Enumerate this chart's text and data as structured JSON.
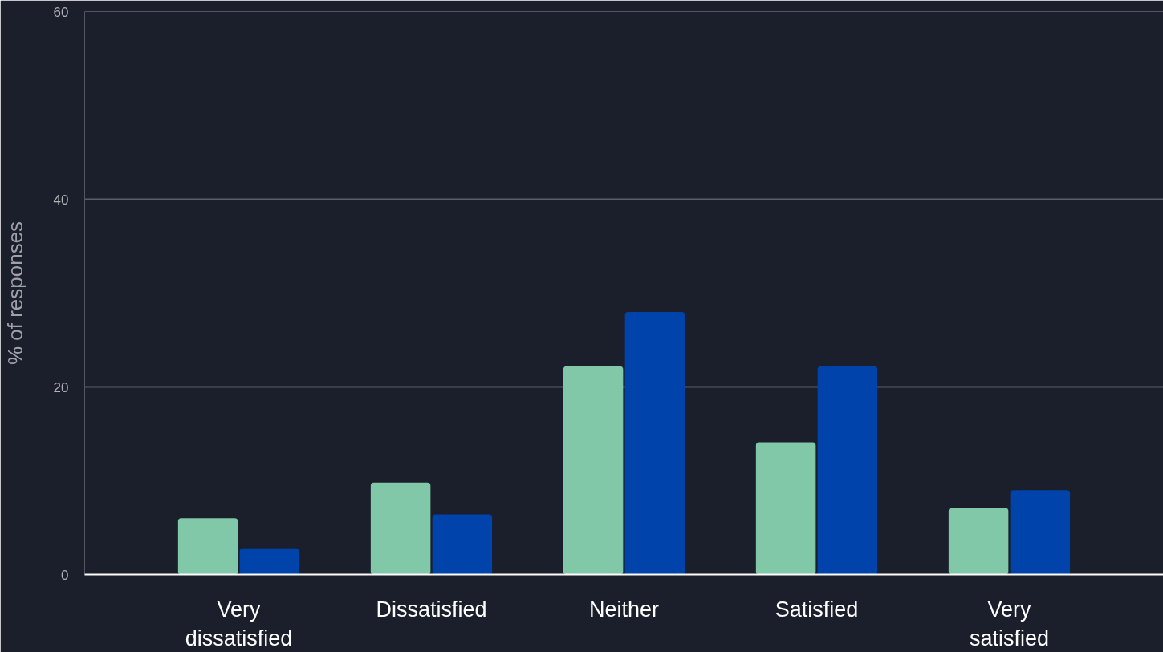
{
  "chart_data": {
    "type": "bar",
    "ylabel": "% of responses",
    "categories": [
      "Very dissatisfied",
      "Dissatisfied",
      "Neither",
      "Satisfied",
      "Very satisfied"
    ],
    "series": [
      {
        "color": "#80c8a8",
        "values": [
          6.0,
          9.8,
          22.2,
          14.1,
          7.1
        ]
      },
      {
        "color": "#0043ab",
        "values": [
          2.8,
          6.4,
          28.0,
          22.2,
          9.0
        ]
      }
    ],
    "ylim": [
      0,
      60
    ],
    "yticks": [
      0,
      20,
      40,
      60
    ],
    "grid": "y"
  }
}
